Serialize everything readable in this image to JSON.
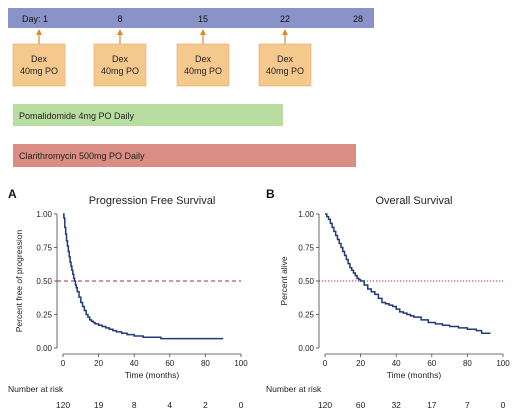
{
  "schema": {
    "timeline": {
      "days": [
        "Day: 1",
        "8",
        "15",
        "22",
        "28"
      ],
      "dex_line1": "Dex",
      "dex_line2": "40mg PO",
      "pomalidomide": "Pomalidomide 4mg PO Daily",
      "clarithromycin": "Clarithromycin 500mg PO Daily"
    }
  },
  "colors": {
    "timeline": "#8a93c8",
    "dex_box": "#f5c98d",
    "arrow": "#d88a2b",
    "pomalidomide": "#b9dca0",
    "clarithromycin": "#d98d83",
    "curve": "#1f3b73",
    "reference": "#c0223b"
  },
  "chart_data": [
    {
      "type": "line",
      "panel": "A",
      "title": "Progression Free Survival",
      "xlabel": "Time (months)",
      "ylabel": "Percent free of progression",
      "xlim": [
        0,
        100
      ],
      "ylim": [
        0,
        1
      ],
      "xticks": [
        "0",
        "20",
        "40",
        "60",
        "80",
        "100"
      ],
      "yticks": [
        "0.00",
        "0.25",
        "0.50",
        "0.75",
        "1.00"
      ],
      "reference_line": {
        "y": 0.5,
        "style": "dashed"
      },
      "risk_label": "Number at risk",
      "risk": [
        "120",
        "19",
        "8",
        "4",
        "2",
        "0"
      ],
      "series": [
        {
          "x": [
            0,
            0.5,
            1,
            1.5,
            2,
            2.5,
            3,
            3.5,
            4,
            4.5,
            5,
            5.5,
            6,
            6.5,
            7,
            7.5,
            8,
            9,
            10,
            11,
            12,
            13,
            14,
            15,
            16,
            17,
            18,
            20,
            22,
            24,
            26,
            28,
            30,
            33,
            36,
            40,
            45,
            50,
            55,
            60,
            65,
            70,
            75,
            80,
            85,
            90
          ],
          "y": [
            1.0,
            0.97,
            0.9,
            0.85,
            0.8,
            0.76,
            0.72,
            0.68,
            0.64,
            0.61,
            0.58,
            0.55,
            0.52,
            0.5,
            0.47,
            0.45,
            0.42,
            0.38,
            0.34,
            0.31,
            0.28,
            0.25,
            0.23,
            0.21,
            0.2,
            0.19,
            0.18,
            0.17,
            0.16,
            0.15,
            0.14,
            0.13,
            0.12,
            0.11,
            0.1,
            0.09,
            0.08,
            0.08,
            0.07,
            0.07,
            0.07,
            0.07,
            0.07,
            0.07,
            0.07,
            0.07
          ]
        }
      ]
    },
    {
      "type": "line",
      "panel": "B",
      "title": "Overall Survival",
      "xlabel": "Time (months)",
      "ylabel": "Percent alive",
      "xlim": [
        0,
        100
      ],
      "ylim": [
        0,
        1
      ],
      "xticks": [
        "0",
        "20",
        "40",
        "60",
        "80",
        "100"
      ],
      "yticks": [
        "0.00",
        "0.25",
        "0.50",
        "0.75",
        "1.00"
      ],
      "reference_line": {
        "y": 0.5,
        "style": "dotted"
      },
      "risk_label": "Number at risk",
      "risk": [
        "120",
        "60",
        "32",
        "17",
        "7",
        "0"
      ],
      "series": [
        {
          "x": [
            0,
            1,
            2,
            3,
            4,
            5,
            6,
            7,
            8,
            9,
            10,
            11,
            12,
            13,
            14,
            15,
            16,
            17,
            18,
            19,
            20,
            22,
            24,
            26,
            28,
            30,
            32,
            34,
            36,
            38,
            40,
            42,
            44,
            46,
            48,
            50,
            54,
            58,
            62,
            66,
            70,
            75,
            80,
            85,
            88,
            93
          ],
          "y": [
            1.0,
            0.98,
            0.96,
            0.93,
            0.9,
            0.87,
            0.84,
            0.81,
            0.78,
            0.75,
            0.72,
            0.69,
            0.66,
            0.63,
            0.6,
            0.58,
            0.56,
            0.54,
            0.52,
            0.51,
            0.5,
            0.47,
            0.44,
            0.42,
            0.4,
            0.37,
            0.34,
            0.33,
            0.32,
            0.31,
            0.29,
            0.27,
            0.26,
            0.25,
            0.24,
            0.23,
            0.21,
            0.19,
            0.18,
            0.17,
            0.16,
            0.15,
            0.14,
            0.13,
            0.11,
            0.11
          ]
        }
      ]
    }
  ],
  "panel_labels": [
    "A",
    "B"
  ]
}
